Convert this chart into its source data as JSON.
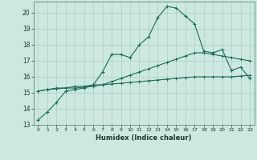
{
  "xlabel": "Humidex (Indice chaleur)",
  "background_color": "#cde8e0",
  "grid_color": "#aacfc5",
  "line_color": "#1a6b5a",
  "xlim": [
    -0.5,
    23.5
  ],
  "ylim": [
    13,
    20.7
  ],
  "yticks": [
    13,
    14,
    15,
    16,
    17,
    18,
    19,
    20
  ],
  "xticks": [
    0,
    1,
    2,
    3,
    4,
    5,
    6,
    7,
    8,
    9,
    10,
    11,
    12,
    13,
    14,
    15,
    16,
    17,
    18,
    19,
    20,
    21,
    22,
    23
  ],
  "series1_x": [
    0,
    1,
    2,
    3,
    4,
    5,
    6,
    7,
    8,
    9,
    10,
    11,
    12,
    13,
    14,
    15,
    16,
    17,
    18,
    19,
    20,
    21,
    22,
    23
  ],
  "series1_y": [
    13.3,
    13.8,
    14.4,
    15.1,
    15.2,
    15.3,
    15.5,
    16.3,
    17.4,
    17.4,
    17.2,
    18.0,
    18.5,
    19.7,
    20.4,
    20.3,
    19.8,
    19.3,
    17.6,
    17.5,
    17.7,
    16.4,
    16.6,
    15.9
  ],
  "series2_x": [
    0,
    1,
    2,
    3,
    4,
    5,
    6,
    7,
    8,
    9,
    10,
    11,
    12,
    13,
    14,
    15,
    16,
    17,
    18,
    19,
    20,
    21,
    22,
    23
  ],
  "series2_y": [
    15.1,
    15.2,
    15.3,
    15.3,
    15.4,
    15.4,
    15.5,
    15.5,
    15.7,
    15.9,
    16.1,
    16.3,
    16.5,
    16.7,
    16.9,
    17.1,
    17.3,
    17.5,
    17.5,
    17.4,
    17.3,
    17.2,
    17.1,
    17.0
  ],
  "series3_x": [
    0,
    1,
    2,
    3,
    4,
    5,
    6,
    7,
    8,
    9,
    10,
    11,
    12,
    13,
    14,
    15,
    16,
    17,
    18,
    19,
    20,
    21,
    22,
    23
  ],
  "series3_y": [
    15.1,
    15.2,
    15.25,
    15.3,
    15.3,
    15.35,
    15.4,
    15.5,
    15.55,
    15.6,
    15.65,
    15.7,
    15.75,
    15.8,
    15.85,
    15.9,
    15.95,
    16.0,
    16.0,
    16.0,
    16.0,
    16.0,
    16.05,
    16.1
  ]
}
